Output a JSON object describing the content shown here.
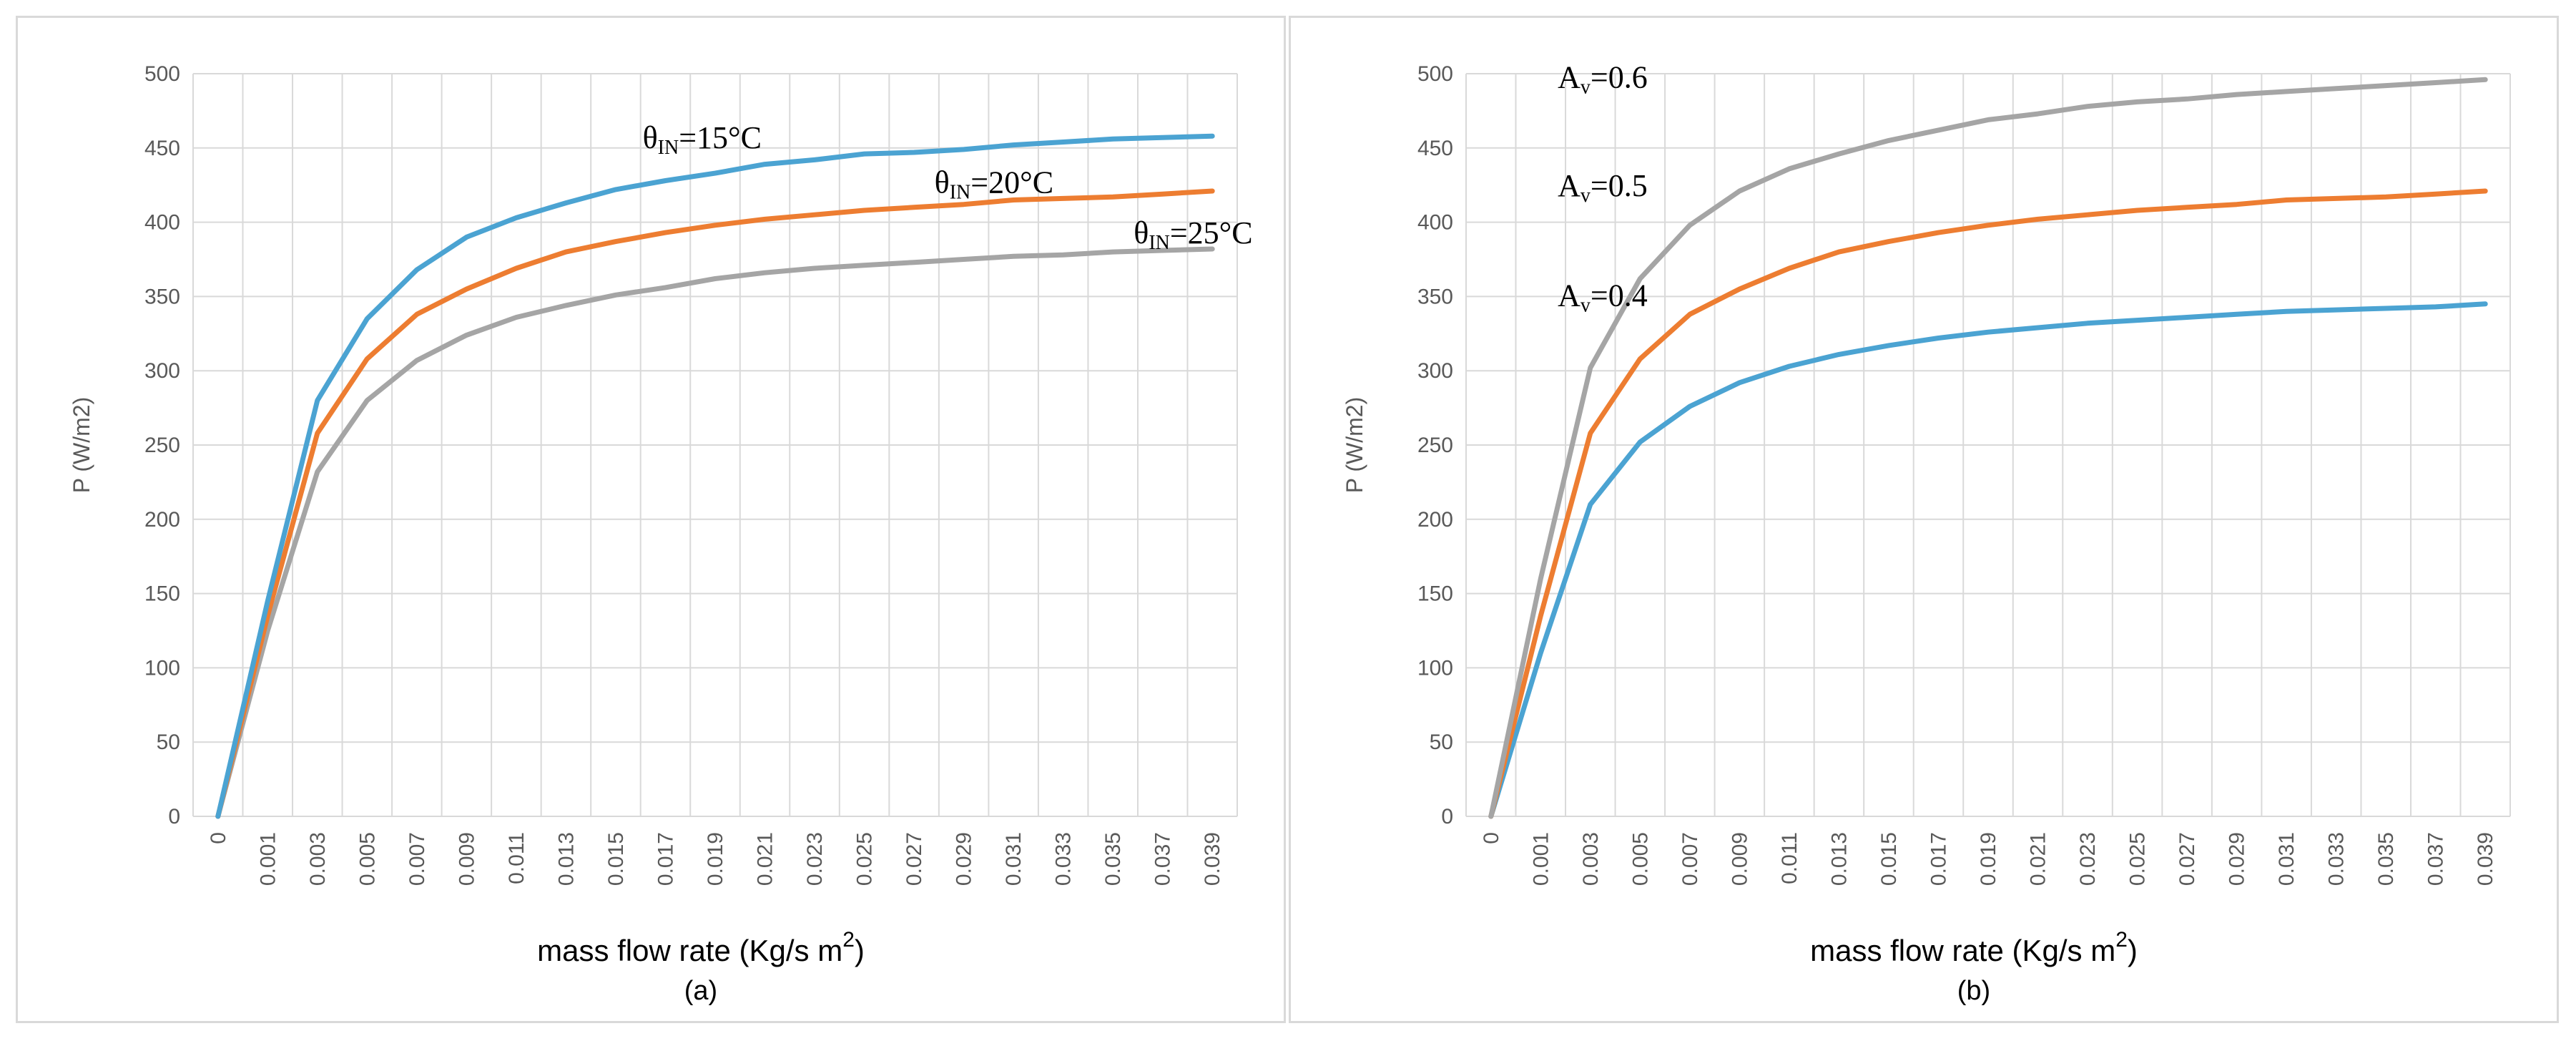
{
  "figure": {
    "panel_a_label": "(a)",
    "panel_b_label": "(b)"
  },
  "chart_data": [
    {
      "type": "line",
      "panel": "(a)",
      "ylabel": "P (W/m2)",
      "xlabel_text": "mass flow rate (Kg/s m",
      "xlabel_sup": "2",
      "xlabel_close": ")",
      "ylim": [
        0,
        500
      ],
      "yticks": [
        0,
        50,
        100,
        150,
        200,
        250,
        300,
        350,
        400,
        450,
        500
      ],
      "categories": [
        "0",
        "0.001",
        "0.003",
        "0.005",
        "0.007",
        "0.009",
        "0.011",
        "0.013",
        "0.015",
        "0.017",
        "0.019",
        "0.021",
        "0.023",
        "0.025",
        "0.027",
        "0.029",
        "0.031",
        "0.033",
        "0.035",
        "0.037",
        "0.039"
      ],
      "series": [
        {
          "name": "θIN=15°C",
          "color": "#4ba3d2",
          "values": [
            0,
            145,
            280,
            335,
            368,
            390,
            403,
            413,
            422,
            428,
            433,
            439,
            442,
            446,
            447,
            449,
            452,
            454,
            456,
            457,
            458
          ]
        },
        {
          "name": "θIN=20°C",
          "color": "#ed7d31",
          "values": [
            0,
            135,
            258,
            308,
            338,
            355,
            369,
            380,
            387,
            393,
            398,
            402,
            405,
            408,
            410,
            412,
            415,
            416,
            417,
            419,
            421
          ]
        },
        {
          "name": "θIN=25°C",
          "color": "#a5a5a5",
          "values": [
            0,
            125,
            232,
            280,
            307,
            324,
            336,
            344,
            351,
            356,
            362,
            366,
            369,
            371,
            373,
            375,
            377,
            378,
            380,
            381,
            382
          ]
        }
      ],
      "annotations": [
        {
          "series": 0,
          "base": "θ",
          "sub": "IN",
          "rest": "=15°C"
        },
        {
          "series": 1,
          "base": "θ",
          "sub": "IN",
          "rest": "=20°C"
        },
        {
          "series": 2,
          "base": "θ",
          "sub": "IN",
          "rest": "=25°C"
        }
      ]
    },
    {
      "type": "line",
      "panel": "(b)",
      "ylabel": "P (W/m2)",
      "xlabel_text": "mass flow rate (Kg/s m",
      "xlabel_sup": "2",
      "xlabel_close": ")",
      "ylim": [
        0,
        500
      ],
      "yticks": [
        0,
        50,
        100,
        150,
        200,
        250,
        300,
        350,
        400,
        450,
        500
      ],
      "categories": [
        "0",
        "0.001",
        "0.003",
        "0.005",
        "0.007",
        "0.009",
        "0.011",
        "0.013",
        "0.015",
        "0.017",
        "0.019",
        "0.021",
        "0.023",
        "0.025",
        "0.027",
        "0.029",
        "0.031",
        "0.033",
        "0.035",
        "0.037",
        "0.039"
      ],
      "series": [
        {
          "name": "Av=0.6",
          "color": "#a5a5a5",
          "values": [
            0,
            160,
            302,
            362,
            398,
            421,
            436,
            446,
            455,
            462,
            469,
            473,
            478,
            481,
            483,
            486,
            488,
            490,
            492,
            494,
            496
          ]
        },
        {
          "name": "Av=0.5",
          "color": "#ed7d31",
          "values": [
            0,
            135,
            258,
            308,
            338,
            355,
            369,
            380,
            387,
            393,
            398,
            402,
            405,
            408,
            410,
            412,
            415,
            416,
            417,
            419,
            421
          ]
        },
        {
          "name": "Av=0.4",
          "color": "#4ba3d2",
          "values": [
            0,
            110,
            210,
            252,
            276,
            292,
            303,
            311,
            317,
            322,
            326,
            329,
            332,
            334,
            336,
            338,
            340,
            341,
            342,
            343,
            345
          ]
        }
      ],
      "annotations": [
        {
          "series": 0,
          "base": "A",
          "sub": "v",
          "rest": "=0.6"
        },
        {
          "series": 1,
          "base": "A",
          "sub": "v",
          "rest": "=0.5"
        },
        {
          "series": 2,
          "base": "A",
          "sub": "v",
          "rest": "=0.4"
        }
      ]
    }
  ]
}
